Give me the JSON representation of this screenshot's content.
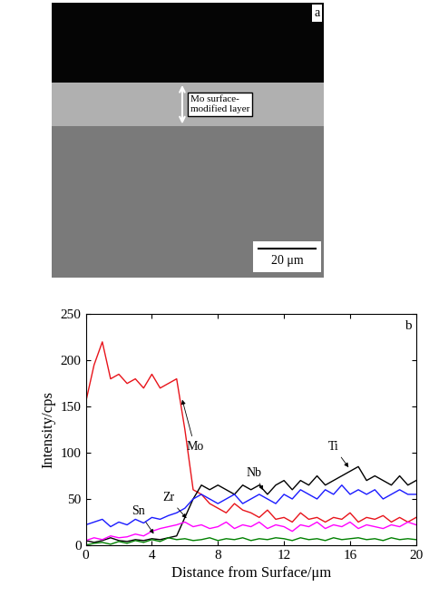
{
  "micrograph": {
    "panel_label": "a",
    "layer_label": "Mo surface-\nmodified layer",
    "scale_bar": "20 μm"
  },
  "chart_data": {
    "type": "line",
    "panel_label": "b",
    "x_label": "Distance from Surface/μm",
    "y_label": "Intensity/cps",
    "xlim": [
      0,
      20
    ],
    "xticks": [
      0,
      4,
      8,
      12,
      16,
      20
    ],
    "ylim": [
      0,
      250
    ],
    "yticks": [
      0,
      50,
      100,
      150,
      200,
      250
    ],
    "x": [
      0,
      0.5,
      1,
      1.5,
      2,
      2.5,
      3,
      3.5,
      4,
      4.5,
      5,
      5.5,
      6,
      6.5,
      7,
      7.5,
      8,
      8.5,
      9,
      9.5,
      10,
      10.5,
      11,
      11.5,
      12,
      12.5,
      13,
      13.5,
      14,
      14.5,
      15,
      15.5,
      16,
      16.5,
      17,
      17.5,
      18,
      18.5,
      19,
      19.5,
      20
    ],
    "series": [
      {
        "name": "Mo",
        "color": "#e8141b",
        "values": [
          155,
          195,
          220,
          180,
          185,
          175,
          180,
          170,
          185,
          170,
          175,
          180,
          125,
          60,
          55,
          45,
          40,
          35,
          45,
          38,
          35,
          30,
          38,
          28,
          30,
          25,
          35,
          28,
          30,
          25,
          30,
          28,
          35,
          25,
          30,
          28,
          32,
          25,
          30,
          25,
          30
        ]
      },
      {
        "name": "Ti",
        "color": "#000000",
        "values": [
          5,
          3,
          5,
          8,
          5,
          4,
          6,
          5,
          7,
          6,
          8,
          10,
          30,
          50,
          65,
          60,
          65,
          60,
          55,
          65,
          60,
          65,
          55,
          65,
          70,
          60,
          70,
          65,
          75,
          65,
          70,
          75,
          80,
          85,
          70,
          75,
          70,
          65,
          75,
          65,
          70
        ]
      },
      {
        "name": "Nb",
        "color": "#1a1aff",
        "values": [
          22,
          25,
          28,
          20,
          25,
          22,
          28,
          24,
          30,
          28,
          32,
          35,
          40,
          50,
          55,
          50,
          45,
          50,
          55,
          45,
          50,
          55,
          50,
          45,
          55,
          50,
          60,
          55,
          50,
          60,
          55,
          65,
          55,
          60,
          55,
          60,
          50,
          55,
          60,
          55,
          55
        ]
      },
      {
        "name": "Zr",
        "color": "#ff00ff",
        "values": [
          5,
          8,
          6,
          10,
          8,
          9,
          12,
          10,
          15,
          18,
          20,
          22,
          25,
          20,
          22,
          18,
          20,
          25,
          18,
          22,
          20,
          25,
          18,
          22,
          20,
          15,
          22,
          20,
          25,
          18,
          22,
          20,
          25,
          18,
          22,
          20,
          18,
          22,
          20,
          25,
          22
        ]
      },
      {
        "name": "Sn",
        "color": "#008000",
        "values": [
          0,
          2,
          3,
          1,
          4,
          2,
          5,
          3,
          6,
          4,
          8,
          6,
          7,
          5,
          6,
          8,
          5,
          7,
          6,
          8,
          5,
          7,
          6,
          8,
          7,
          5,
          8,
          6,
          7,
          5,
          8,
          6,
          7,
          8,
          6,
          7,
          5,
          8,
          6,
          7,
          6
        ]
      }
    ]
  }
}
